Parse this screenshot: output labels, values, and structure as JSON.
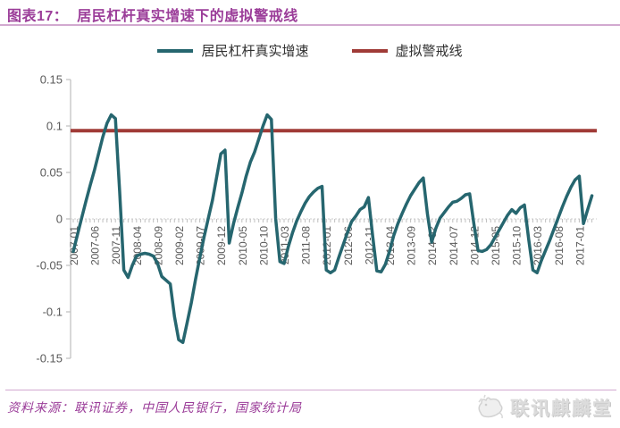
{
  "header": {
    "title": "图表17：  居民杠杆真实增速下的虚拟警戒线"
  },
  "footer": {
    "source": "资料来源：联讯证券，中国人民银行，国家统计局",
    "logo_text": "联讯麒麟堂",
    "logo_icon": "qilin-creature"
  },
  "colors": {
    "accent_purple": "#9B3D99",
    "rule_pink": "#D2A9D0",
    "series_teal": "#26666F",
    "threshold_red": "#A03B37",
    "axis_text_gray": "#595959",
    "axis_line_gray": "#BFBFBF",
    "logo_gray": "#DCDCDC"
  },
  "chart_data": {
    "type": "line",
    "title": "居民杠杆真实增速下的虚拟警戒线",
    "legend_position": "top",
    "grid": "zero-gridline-only",
    "ylim": [
      -0.15,
      0.15
    ],
    "y_ticks": [
      0.15,
      0.1,
      0.05,
      0,
      -0.05,
      -0.1,
      -0.15
    ],
    "y_tick_labels": [
      "0.15",
      "0.1",
      "0.05",
      "0",
      "-0.05",
      "-0.1",
      "-0.15"
    ],
    "x_monthly_start": "2007-01",
    "x_monthly_end": "2017-04",
    "x_tick_every_months": 5,
    "x_tick_labels": [
      "2007-01",
      "2007-06",
      "2007-11",
      "2008-04",
      "2008-09",
      "2009-02",
      "2009-07",
      "2009-12",
      "2010-05",
      "2010-10",
      "2011-03",
      "2011-08",
      "2012-01",
      "2012-06",
      "2012-11",
      "2013-04",
      "2013-09",
      "2014-02",
      "2014-07",
      "2014-12",
      "2015-05",
      "2015-10",
      "2016-03",
      "2016-08",
      "2017-01"
    ],
    "series": [
      {
        "name": "居民杠杆真实增速",
        "color": "#26666F",
        "values": [
          -0.035,
          -0.017,
          0.001,
          0.019,
          0.036,
          0.052,
          0.07,
          0.088,
          0.103,
          0.112,
          0.108,
          0.03,
          -0.055,
          -0.063,
          -0.05,
          -0.04,
          -0.038,
          -0.037,
          -0.038,
          -0.04,
          -0.048,
          -0.062,
          -0.066,
          -0.07,
          -0.105,
          -0.13,
          -0.133,
          -0.112,
          -0.09,
          -0.065,
          -0.042,
          -0.02,
          0.0,
          0.02,
          0.045,
          0.07,
          0.074,
          -0.026,
          -0.005,
          0.012,
          0.028,
          0.046,
          0.061,
          0.072,
          0.086,
          0.1,
          0.112,
          0.107,
          0.0,
          -0.046,
          -0.048,
          -0.03,
          -0.015,
          -0.002,
          0.008,
          0.017,
          0.024,
          0.029,
          0.033,
          0.035,
          -0.055,
          -0.058,
          -0.055,
          -0.041,
          -0.028,
          -0.015,
          -0.003,
          0.003,
          0.01,
          0.013,
          0.023,
          -0.018,
          -0.056,
          -0.057,
          -0.049,
          -0.035,
          -0.018,
          -0.005,
          0.006,
          0.016,
          0.025,
          0.032,
          0.039,
          0.044,
          0.005,
          -0.025,
          -0.01,
          0.001,
          0.007,
          0.013,
          0.018,
          0.019,
          0.022,
          0.026,
          0.027,
          -0.005,
          -0.034,
          -0.035,
          -0.033,
          -0.028,
          -0.02,
          -0.012,
          -0.004,
          0.004,
          0.01,
          0.006,
          0.012,
          0.015,
          -0.022,
          -0.055,
          -0.058,
          -0.045,
          -0.034,
          -0.023,
          -0.011,
          0.001,
          0.013,
          0.024,
          0.034,
          0.042,
          0.046,
          -0.005,
          0.01,
          0.025
        ]
      },
      {
        "name": "虚拟警戒线",
        "color": "#A03B37",
        "constant_value": 0.095
      }
    ]
  }
}
